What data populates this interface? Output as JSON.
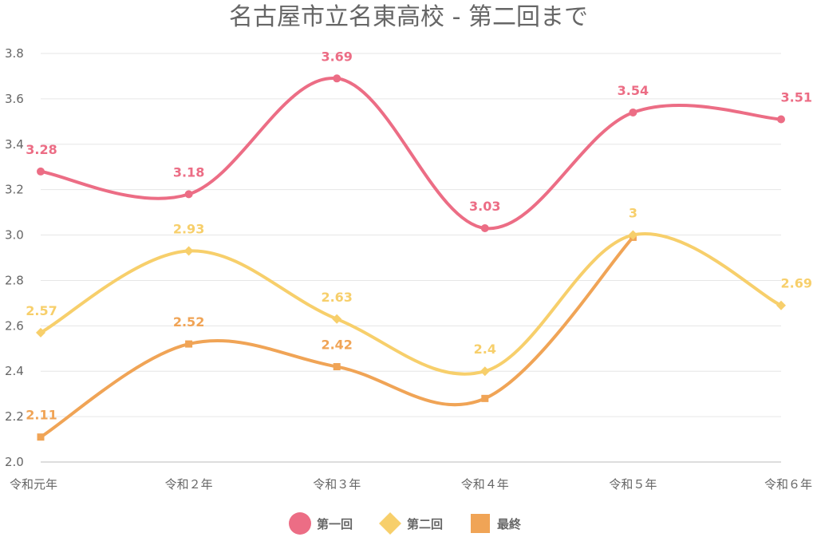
{
  "chart_data": {
    "type": "line",
    "title": "名古屋市立名東高校 - 第二回まで",
    "categories": [
      "令和元年",
      "令和２年",
      "令和３年",
      "令和４年",
      "令和５年",
      "令和６年"
    ],
    "ylim": [
      2.0,
      3.8
    ],
    "yticks": [
      "2.0",
      "2.2",
      "2.4",
      "2.6",
      "2.8",
      "3.0",
      "3.2",
      "3.4",
      "3.6",
      "3.8"
    ],
    "grid": true,
    "legend_position": "bottom",
    "series": [
      {
        "name": "第一回",
        "color": "#ec6d85",
        "marker": "circle",
        "values": [
          3.28,
          3.18,
          3.69,
          3.03,
          3.54,
          3.51
        ],
        "labels": [
          "3.28",
          "3.18",
          "3.69",
          "3.03",
          "3.54",
          "3.51"
        ]
      },
      {
        "name": "第二回",
        "color": "#f7cf6b",
        "marker": "diamond",
        "values": [
          2.57,
          2.93,
          2.63,
          2.4,
          3,
          2.69
        ],
        "labels": [
          "2.57",
          "2.93",
          "2.63",
          "2.4",
          "3",
          "2.69"
        ]
      },
      {
        "name": "最終",
        "color": "#f0a456",
        "marker": "square",
        "values": [
          2.11,
          2.52,
          2.42,
          2.28,
          2.99,
          null
        ],
        "labels": [
          "2.11",
          "2.52",
          "2.42",
          "",
          "",
          ""
        ]
      }
    ]
  }
}
